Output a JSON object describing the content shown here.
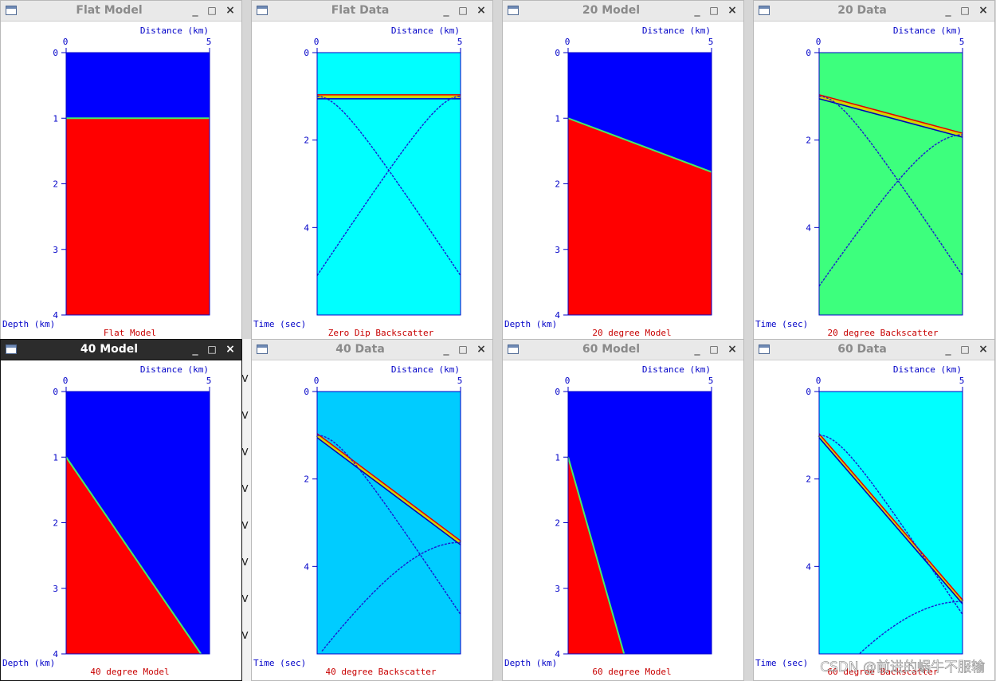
{
  "colors": {
    "blue": "#0000ff",
    "red": "#ff0000",
    "cyan": "#00ffff",
    "green": "#3dff7d",
    "skyblue": "#00ccff",
    "axis": "#0000c8",
    "caption": "#c80000"
  },
  "controls": {
    "minimize": "_",
    "maximize": "□",
    "close": "×"
  },
  "windows": [
    {
      "title": "Flat Model",
      "ylabel": "Depth (km)",
      "xlabel": "Distance (km)",
      "caption": "Flat Model",
      "xticks": [
        "0",
        "5"
      ],
      "yticks": [
        "0",
        "1",
        "2",
        "3",
        "4"
      ],
      "kind": "model",
      "interface_depth_km": [
        1.0,
        1.0
      ],
      "active": false
    },
    {
      "title": "Flat Data",
      "ylabel": "Time (sec)",
      "xlabel": "Distance (km)",
      "caption": "Zero Dip Backscatter",
      "xticks": [
        "0",
        "5"
      ],
      "yticks": [
        "0",
        "2",
        "4"
      ],
      "kind": "data",
      "background": "cyan",
      "reflector_time_s": [
        1.0,
        1.0
      ],
      "diffraction_apex_time_s": 1.0,
      "active": false
    },
    {
      "title": "20 Model",
      "ylabel": "Depth (km)",
      "xlabel": "Distance (km)",
      "caption": "20 degree Model",
      "xticks": [
        "0",
        "5"
      ],
      "yticks": [
        "0",
        "1",
        "2",
        "3",
        "4"
      ],
      "kind": "model",
      "interface_depth_km": [
        1.0,
        1.82
      ],
      "active": false
    },
    {
      "title": "20 Data",
      "ylabel": "Time (sec)",
      "xlabel": "Distance (km)",
      "caption": "20 degree Backscatter",
      "xticks": [
        "0",
        "5"
      ],
      "yticks": [
        "0",
        "2",
        "4"
      ],
      "kind": "data",
      "background": "green",
      "reflector_time_s": [
        1.0,
        1.88
      ],
      "diffraction_apex_time_s": 1.0,
      "active": false
    },
    {
      "title": "40 Model",
      "ylabel": "Depth (km)",
      "xlabel": "Distance (km)",
      "caption": "40 degree Model",
      "xticks": [
        "0",
        "5"
      ],
      "yticks": [
        "0",
        "1",
        "2",
        "3",
        "4"
      ],
      "kind": "model",
      "interface_depth_km": [
        1.0,
        4.0
      ],
      "interface_end_x_km": 4.7,
      "active": true
    },
    {
      "title": "40 Data",
      "ylabel": "Time (sec)",
      "xlabel": "Distance (km)",
      "caption": "40 degree Backscatter",
      "xticks": [
        "0",
        "5"
      ],
      "yticks": [
        "0",
        "2",
        "4"
      ],
      "kind": "data",
      "background": "skyblue",
      "reflector_time_s": [
        1.0,
        3.45
      ],
      "diffraction_apex_time_s": 1.0,
      "active": false
    },
    {
      "title": "60 Model",
      "ylabel": "Depth (km)",
      "xlabel": "Distance (km)",
      "caption": "60 degree Model",
      "xticks": [
        "0",
        "5"
      ],
      "yticks": [
        "0",
        "1",
        "2",
        "3",
        "4"
      ],
      "kind": "model",
      "interface_depth_km": [
        1.0,
        4.0
      ],
      "interface_end_x_km": 1.95,
      "active": false
    },
    {
      "title": "60 Data",
      "ylabel": "Time (sec)",
      "xlabel": "Distance (km)",
      "caption": "60 degree Backscatter",
      "xticks": [
        "0",
        "5"
      ],
      "yticks": [
        "0",
        "2",
        "4"
      ],
      "kind": "data",
      "background": "cyan",
      "reflector_time_s": [
        1.0,
        4.8
      ],
      "diffraction_apex_time_s": 1.0,
      "active": false
    }
  ],
  "watermark": "CSDN @前进的蜗牛不服输"
}
